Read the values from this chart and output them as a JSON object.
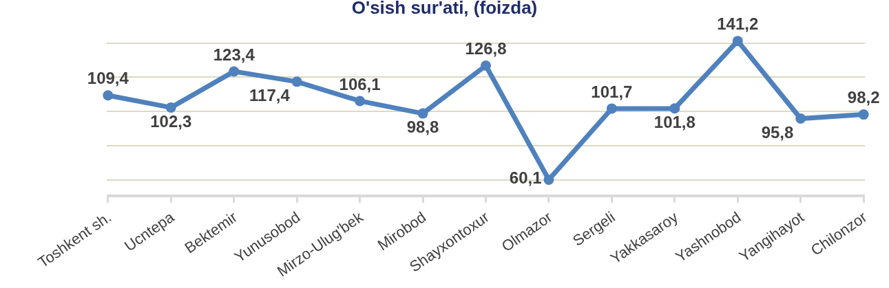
{
  "chart_data": {
    "type": "line",
    "title": "O'sish sur'ati, (foizda)",
    "categories": [
      "Toshkent sh.",
      "Ucntepa",
      "Bektemir",
      "Yunusobod",
      "Mirzo-Ulug'bek",
      "Mirobod",
      "Shayxontoxur",
      "Olmazor",
      "Sergeli",
      "Yakkasaroy",
      "Yashnobod",
      "Yangihayot",
      "Chilonzor"
    ],
    "series": [
      {
        "color": "#4f81bd",
        "values": [
          109.4,
          102.3,
          123.4,
          117.4,
          106.1,
          98.8,
          126.8,
          60.1,
          101.7,
          101.8,
          141.2,
          95.8,
          98.2
        ],
        "value_labels": [
          "109,4",
          "102,3",
          "123,4",
          "117,4",
          "106,1",
          "98,8",
          "126,8",
          "60,1",
          "101,7",
          "101,8",
          "141,2",
          "95,8",
          "98,2"
        ]
      }
    ],
    "grid": "y",
    "marker": "circle",
    "line_style": "solid",
    "tick_labels": "x"
  }
}
